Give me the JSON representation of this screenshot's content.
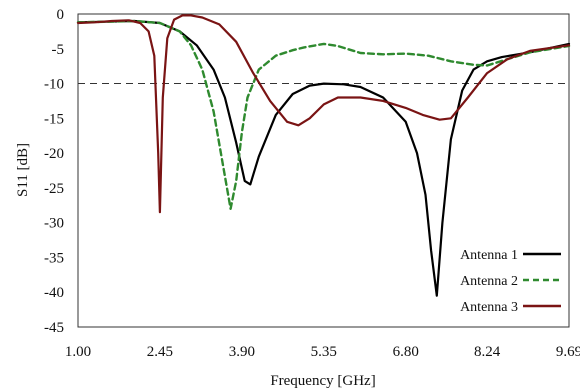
{
  "chart_data": {
    "type": "line",
    "title": "",
    "xlabel": "Frequency  [GHz]",
    "ylabel": "S11 [dB]",
    "xlim": [
      1.0,
      9.69
    ],
    "ylim": [
      -45,
      0
    ],
    "x_ticks": [
      "1.00",
      "2.45",
      "3.90",
      "5.35",
      "6.80",
      "8.24",
      "9.69"
    ],
    "x_tick_values": [
      1.0,
      2.45,
      3.9,
      5.35,
      6.8,
      8.24,
      9.69
    ],
    "y_ticks": [
      "0",
      "-5",
      "-10",
      "-15",
      "-20",
      "-25",
      "-30",
      "-35",
      "-40",
      "-45"
    ],
    "y_tick_values": [
      0,
      -5,
      -10,
      -15,
      -20,
      -25,
      -30,
      -35,
      -40,
      -45
    ],
    "grid": false,
    "legend_position": "bottom-right",
    "reference_line": {
      "y": -10,
      "style": "dashed",
      "color": "#333333"
    },
    "series": [
      {
        "name": "Antenna 1",
        "color": "#000000",
        "style": "solid",
        "x": [
          1.0,
          1.5,
          2.0,
          2.45,
          2.8,
          3.1,
          3.4,
          3.6,
          3.8,
          3.95,
          4.05,
          4.2,
          4.5,
          4.8,
          5.1,
          5.35,
          5.7,
          6.0,
          6.4,
          6.8,
          7.0,
          7.15,
          7.25,
          7.35,
          7.45,
          7.6,
          7.8,
          8.0,
          8.24,
          8.5,
          9.0,
          9.69
        ],
        "y": [
          -1.2,
          -1.1,
          -1.0,
          -1.3,
          -2.5,
          -4.5,
          -8.0,
          -12.0,
          -18.5,
          -24.0,
          -24.5,
          -20.5,
          -14.5,
          -11.5,
          -10.3,
          -10.0,
          -10.1,
          -10.5,
          -12.0,
          -15.5,
          -20.0,
          -26.0,
          -34.0,
          -40.5,
          -30.0,
          -18.0,
          -11.0,
          -8.0,
          -6.8,
          -6.2,
          -5.5,
          -4.3
        ]
      },
      {
        "name": "Antenna 2",
        "color": "#2f8a2f",
        "style": "dashed",
        "x": [
          1.0,
          1.5,
          2.0,
          2.45,
          2.8,
          3.0,
          3.2,
          3.4,
          3.55,
          3.7,
          3.8,
          3.9,
          4.0,
          4.2,
          4.5,
          4.8,
          5.0,
          5.35,
          5.6,
          6.0,
          6.4,
          6.8,
          7.2,
          7.6,
          8.0,
          8.24,
          8.6,
          9.0,
          9.69
        ],
        "y": [
          -1.2,
          -1.1,
          -1.0,
          -1.3,
          -2.5,
          -4.5,
          -8.0,
          -14.0,
          -21.0,
          -28.0,
          -24.0,
          -17.0,
          -12.0,
          -8.0,
          -6.0,
          -5.2,
          -4.8,
          -4.3,
          -4.6,
          -5.6,
          -5.8,
          -5.7,
          -6.0,
          -6.8,
          -7.3,
          -7.4,
          -6.5,
          -5.5,
          -4.6
        ]
      },
      {
        "name": "Antenna 3",
        "color": "#7a1414",
        "style": "solid",
        "x": [
          1.0,
          1.3,
          1.6,
          1.9,
          2.1,
          2.25,
          2.35,
          2.42,
          2.45,
          2.5,
          2.58,
          2.7,
          2.85,
          3.0,
          3.2,
          3.5,
          3.8,
          4.1,
          4.4,
          4.7,
          4.9,
          5.1,
          5.35,
          5.6,
          6.0,
          6.4,
          6.8,
          7.1,
          7.4,
          7.6,
          7.9,
          8.24,
          8.6,
          9.0,
          9.69
        ],
        "y": [
          -1.3,
          -1.2,
          -1.0,
          -0.9,
          -1.3,
          -2.5,
          -6.0,
          -20.0,
          -28.5,
          -12.0,
          -3.5,
          -0.8,
          -0.2,
          -0.2,
          -0.5,
          -1.5,
          -4.0,
          -8.5,
          -12.5,
          -15.5,
          -16.0,
          -15.0,
          -13.0,
          -12.0,
          -12.0,
          -12.5,
          -13.5,
          -14.5,
          -15.2,
          -15.0,
          -12.0,
          -8.5,
          -6.5,
          -5.3,
          -4.5
        ]
      }
    ]
  }
}
